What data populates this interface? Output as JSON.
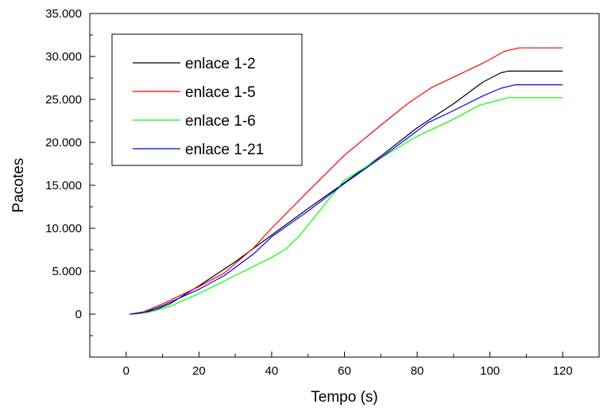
{
  "chart_data": {
    "type": "line",
    "title": "",
    "xlabel": "Tempo (s)",
    "ylabel": "Pacotes",
    "xlim": [
      -10,
      130
    ],
    "ylim": [
      -5000,
      35000
    ],
    "xticks": [
      0,
      20,
      40,
      60,
      80,
      100,
      120
    ],
    "xtick_labels": [
      "0",
      "20",
      "40",
      "60",
      "80",
      "100",
      "120"
    ],
    "yticks": [
      0,
      5000,
      10000,
      15000,
      20000,
      25000,
      30000,
      35000
    ],
    "ytick_labels": [
      "0",
      "5.000",
      "10.000",
      "15.000",
      "20.000",
      "25.000",
      "30.000",
      "35.000"
    ],
    "grid": false,
    "legend_position": "top-left",
    "series": [
      {
        "name": "enlace 1-2",
        "color": "#000000",
        "points": [
          [
            1,
            0
          ],
          [
            4,
            100
          ],
          [
            8,
            500
          ],
          [
            12,
            1200
          ],
          [
            20,
            3300
          ],
          [
            30,
            6100
          ],
          [
            40,
            9200
          ],
          [
            50,
            12300
          ],
          [
            60,
            15300
          ],
          [
            70,
            18400
          ],
          [
            80,
            21700
          ],
          [
            90,
            24500
          ],
          [
            98,
            27000
          ],
          [
            103,
            28100
          ],
          [
            105,
            28300
          ],
          [
            120,
            28300
          ]
        ]
      },
      {
        "name": "enlace 1-5",
        "color": "#ff0000",
        "points": [
          [
            1,
            0
          ],
          [
            5,
            300
          ],
          [
            10,
            1200
          ],
          [
            15,
            2200
          ],
          [
            20,
            3200
          ],
          [
            27,
            4800
          ],
          [
            35,
            7700
          ],
          [
            40,
            10000
          ],
          [
            50,
            14300
          ],
          [
            60,
            18500
          ],
          [
            70,
            22000
          ],
          [
            78,
            24700
          ],
          [
            84,
            26400
          ],
          [
            90,
            27600
          ],
          [
            98,
            29200
          ],
          [
            104,
            30600
          ],
          [
            108,
            31000
          ],
          [
            120,
            31000
          ]
        ]
      },
      {
        "name": "enlace 1-6",
        "color": "#00ff00",
        "points": [
          [
            1,
            0
          ],
          [
            6,
            200
          ],
          [
            12,
            900
          ],
          [
            20,
            2400
          ],
          [
            30,
            4500
          ],
          [
            40,
            6600
          ],
          [
            44,
            7600
          ],
          [
            48,
            9300
          ],
          [
            55,
            13000
          ],
          [
            60,
            15600
          ],
          [
            70,
            18200
          ],
          [
            80,
            20700
          ],
          [
            90,
            22700
          ],
          [
            97,
            24300
          ],
          [
            105,
            25200
          ],
          [
            120,
            25200
          ]
        ]
      },
      {
        "name": "enlace 1-21",
        "color": "#0000ff",
        "points": [
          [
            1,
            0
          ],
          [
            5,
            200
          ],
          [
            10,
            1000
          ],
          [
            20,
            2900
          ],
          [
            27,
            4500
          ],
          [
            35,
            7000
          ],
          [
            40,
            9000
          ],
          [
            50,
            12000
          ],
          [
            60,
            15200
          ],
          [
            70,
            18200
          ],
          [
            78,
            20700
          ],
          [
            83,
            22300
          ],
          [
            90,
            23700
          ],
          [
            98,
            25400
          ],
          [
            103,
            26300
          ],
          [
            107,
            26700
          ],
          [
            120,
            26700
          ]
        ]
      }
    ]
  }
}
